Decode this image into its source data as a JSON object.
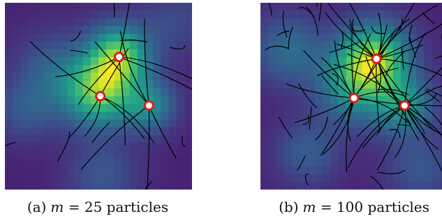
{
  "panels": [
    {
      "id": "a",
      "caption_label": "(a)",
      "caption_var": "m",
      "caption_eq": " = 25 particles",
      "modes": [
        {
          "u": 0.61,
          "v": 0.29,
          "w": 1.0,
          "s": 0.11
        },
        {
          "u": 0.51,
          "v": 0.48,
          "w": 0.95,
          "s": 0.12
        },
        {
          "u": 0.77,
          "v": 0.55,
          "w": 0.55,
          "s": 0.09
        },
        {
          "u": 0.28,
          "v": 0.4,
          "w": 0.35,
          "s": 0.14
        },
        {
          "u": 0.1,
          "v": 0.58,
          "w": 0.2,
          "s": 0.1
        },
        {
          "u": 0.9,
          "v": 0.1,
          "w": 0.15,
          "s": 0.12
        },
        {
          "u": 0.52,
          "v": 0.92,
          "w": 0.22,
          "s": 0.12
        }
      ],
      "targets": [
        [
          0.61,
          0.29
        ],
        [
          0.51,
          0.5
        ],
        [
          0.77,
          0.55
        ]
      ],
      "seed": 7,
      "stray": 10
    },
    {
      "id": "b",
      "caption_label": "(b)",
      "caption_var": "m",
      "caption_eq": " = 100 particles",
      "modes": [
        {
          "u": 0.62,
          "v": 0.29,
          "w": 1.0,
          "s": 0.12
        },
        {
          "u": 0.52,
          "v": 0.42,
          "w": 0.85,
          "s": 0.14
        },
        {
          "u": 0.77,
          "v": 0.55,
          "w": 0.7,
          "s": 0.1
        },
        {
          "u": 0.15,
          "v": 0.25,
          "w": 0.4,
          "s": 0.12
        },
        {
          "u": 0.85,
          "v": 0.88,
          "w": 0.25,
          "s": 0.12
        },
        {
          "u": 0.25,
          "v": 0.8,
          "w": 0.3,
          "s": 0.11
        }
      ],
      "targets": [
        [
          0.62,
          0.3
        ],
        [
          0.5,
          0.51
        ],
        [
          0.77,
          0.55
        ]
      ],
      "seed": 19,
      "stray": 40
    }
  ]
}
